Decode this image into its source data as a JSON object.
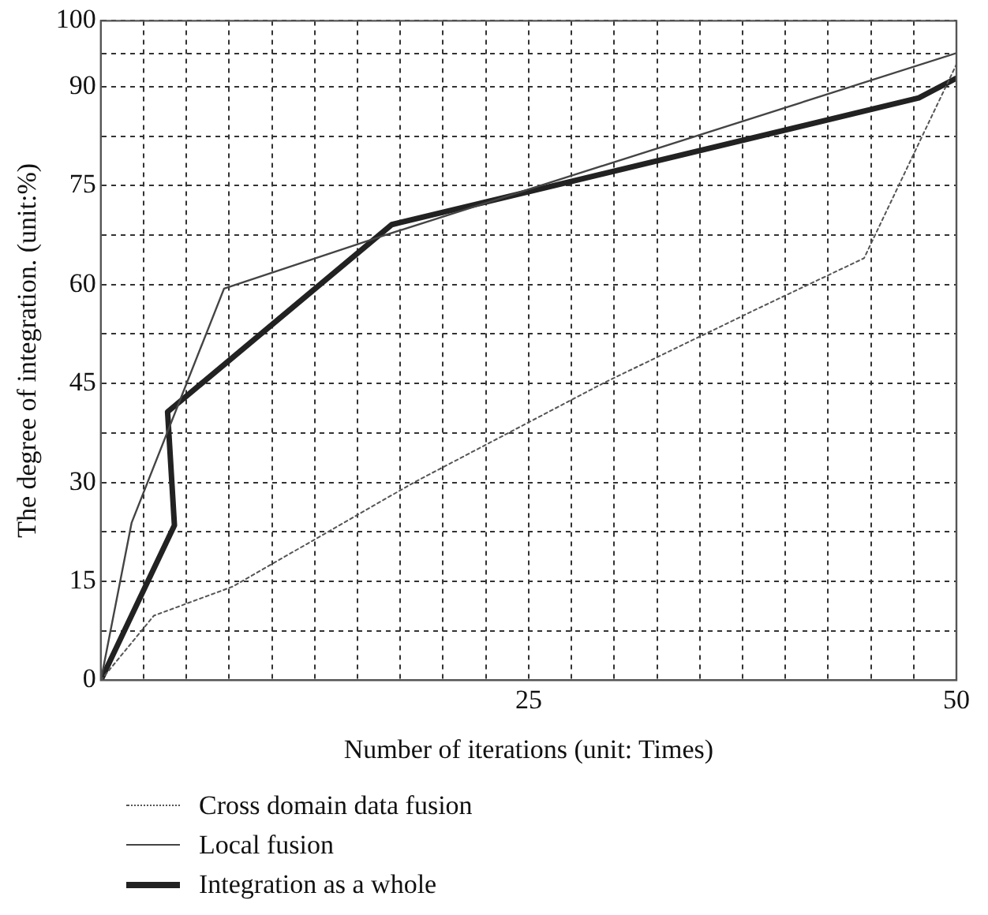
{
  "chart_data": {
    "type": "line",
    "xlabel": "Number of iterations (unit: Times)",
    "ylabel": "The degree of integration. (unit:%)",
    "xlim": [
      0,
      50
    ],
    "ylim": [
      0,
      100
    ],
    "xticks": [
      {
        "value": 0,
        "label": null
      },
      {
        "value": 2.5,
        "label": null
      },
      {
        "value": 5,
        "label": null
      },
      {
        "value": 7.5,
        "label": null
      },
      {
        "value": 10,
        "label": null
      },
      {
        "value": 12.5,
        "label": null
      },
      {
        "value": 15,
        "label": null
      },
      {
        "value": 17.5,
        "label": null
      },
      {
        "value": 20,
        "label": null
      },
      {
        "value": 22.5,
        "label": null
      },
      25,
      {
        "value": 27.5,
        "label": null
      },
      {
        "value": 30,
        "label": null
      },
      {
        "value": 32.5,
        "label": null
      },
      {
        "value": 35,
        "label": null
      },
      {
        "value": 37.5,
        "label": null
      },
      {
        "value": 40,
        "label": null
      },
      {
        "value": 42.5,
        "label": null
      },
      {
        "value": 45,
        "label": null
      },
      {
        "value": 47.5,
        "label": null
      },
      50
    ],
    "yticks": [
      0,
      {
        "value": 7.5,
        "label": null
      },
      15,
      {
        "value": 22.5,
        "label": null
      },
      30,
      {
        "value": 37.5,
        "label": null
      },
      45,
      {
        "value": 52.5,
        "label": null
      },
      60,
      {
        "value": 67.5,
        "label": null
      },
      75,
      {
        "value": 82.5,
        "label": null
      },
      90,
      {
        "value": 95,
        "label": null
      },
      100
    ],
    "grid": true,
    "legend": "bottom",
    "marker": "none",
    "series": [
      {
        "name": "Cross domain data fusion",
        "color": "#555555",
        "line_style": "dotted",
        "x": [
          0,
          3.1,
          7.7,
          18.3,
          29.4,
          38.5,
          44.6,
          50
        ],
        "values": [
          0,
          9.8,
          14.2,
          30,
          45.1,
          56.5,
          64,
          93.4
        ]
      },
      {
        "name": "Local fusion",
        "color": "#444444",
        "line_style": "solid",
        "x": [
          0,
          1.8,
          7.2,
          16.6,
          50
        ],
        "values": [
          0,
          23.9,
          59.4,
          67.5,
          95.1
        ]
      },
      {
        "name": "Integration as a whole",
        "color": "#222222",
        "line_style": "solid",
        "x": [
          0,
          4.3,
          3.9,
          17,
          47.8,
          50
        ],
        "values": [
          0,
          23.5,
          40.7,
          69.1,
          88.3,
          91.3
        ]
      }
    ]
  }
}
